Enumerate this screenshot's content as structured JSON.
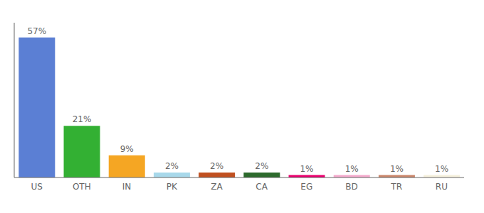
{
  "chart_data": {
    "type": "bar",
    "categories": [
      "US",
      "OTH",
      "IN",
      "PK",
      "ZA",
      "CA",
      "EG",
      "BD",
      "TR",
      "RU"
    ],
    "values": [
      57,
      21,
      9,
      2,
      2,
      2,
      1,
      1,
      1,
      1
    ],
    "value_labels": [
      "57%",
      "21%",
      "9%",
      "2%",
      "2%",
      "2%",
      "1%",
      "1%",
      "1%",
      "1%"
    ],
    "colors": [
      "#5B7FD4",
      "#33B033",
      "#F5A623",
      "#A8D8EA",
      "#C05020",
      "#2D6A2D",
      "#E8006E",
      "#F4AACC",
      "#C9866B",
      "#F5F0DC"
    ],
    "ylim": [
      0,
      63
    ],
    "tick_labels": "x",
    "data_labels": true
  }
}
